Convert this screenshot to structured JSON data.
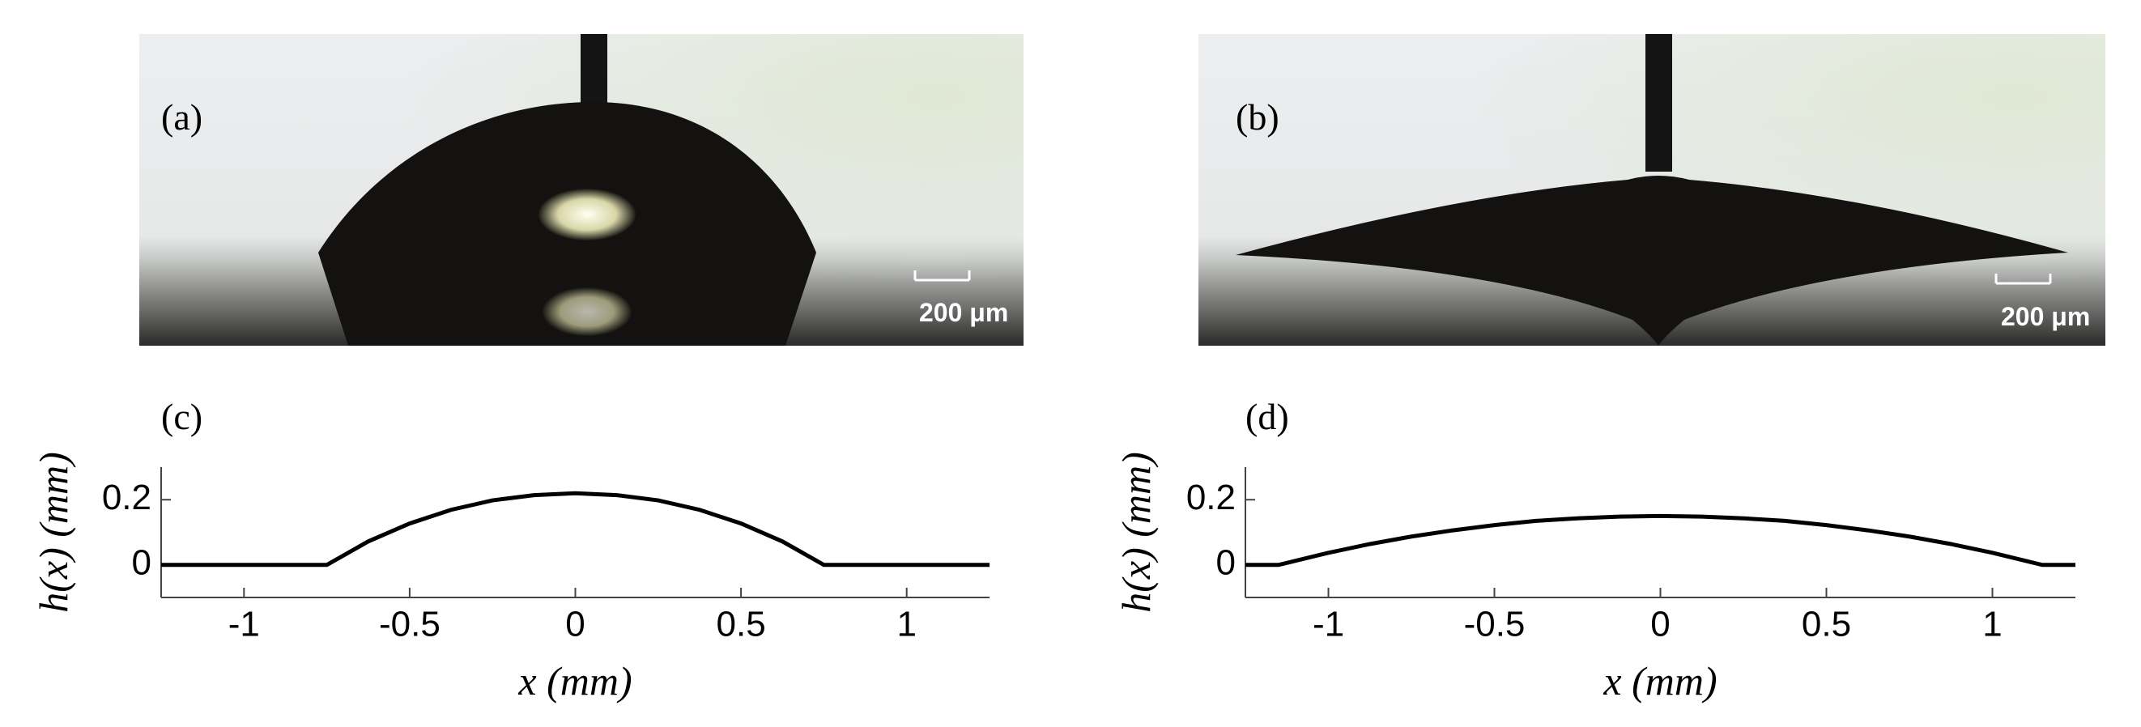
{
  "photos": [
    {
      "label": "(a)",
      "scale_bar": "200 μm"
    },
    {
      "label": "(b)",
      "scale_bar": "200 μm"
    }
  ],
  "chart_data": [
    {
      "type": "line",
      "label": "(c)",
      "xlabel": "x (mm)",
      "ylabel": "h(x) (mm)",
      "x": [
        -1.25,
        -0.75,
        -0.625,
        -0.5,
        -0.375,
        -0.25,
        -0.125,
        0,
        0.125,
        0.25,
        0.375,
        0.5,
        0.625,
        0.75,
        1.25
      ],
      "series": [
        {
          "color": "#000000",
          "values": [
            0,
            0,
            0.072,
            0.127,
            0.169,
            0.198,
            0.214,
            0.22,
            0.214,
            0.198,
            0.169,
            0.127,
            0.072,
            0,
            0
          ]
        }
      ],
      "xlim": [
        -1.25,
        1.25
      ],
      "ylim": [
        -0.1,
        0.3
      ],
      "xticks": [
        -1,
        -0.5,
        0,
        0.5,
        1
      ],
      "yticks": [
        0,
        0.2
      ]
    },
    {
      "type": "line",
      "label": "(d)",
      "xlabel": "x (mm)",
      "ylabel": "h(x) (mm)",
      "x": [
        -1.25,
        -1.15,
        -1,
        -0.875,
        -0.75,
        -0.625,
        -0.5,
        -0.375,
        -0.25,
        -0.125,
        0,
        0.125,
        0.25,
        0.375,
        0.5,
        0.625,
        0.75,
        0.875,
        1,
        1.15,
        1.25
      ],
      "series": [
        {
          "color": "#000000",
          "values": [
            0,
            0,
            0.037,
            0.064,
            0.087,
            0.106,
            0.122,
            0.135,
            0.143,
            0.148,
            0.15,
            0.148,
            0.143,
            0.135,
            0.122,
            0.106,
            0.087,
            0.064,
            0.037,
            0,
            0
          ]
        }
      ],
      "xlim": [
        -1.25,
        1.25
      ],
      "ylim": [
        -0.1,
        0.3
      ],
      "xticks": [
        -1,
        -0.5,
        0,
        0.5,
        1
      ],
      "yticks": [
        0,
        0.2
      ]
    }
  ]
}
